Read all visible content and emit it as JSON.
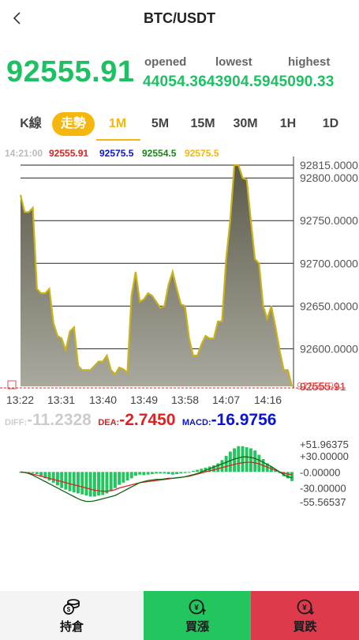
{
  "header": {
    "title": "BTC/USDT"
  },
  "price": {
    "current": "92555.91",
    "labels": {
      "opened": "opened",
      "lowest": "lowest",
      "highest": "highest"
    },
    "opened": "44054.36",
    "lowest": "43904.59",
    "highest": "45090.33"
  },
  "tabs": [
    {
      "label": "K線"
    },
    {
      "label": "走勢"
    },
    {
      "label": "1M"
    },
    {
      "label": "5M"
    },
    {
      "label": "15M"
    },
    {
      "label": "30M"
    },
    {
      "label": "1H"
    },
    {
      "label": "1D"
    }
  ],
  "legend": {
    "time": "14:21:00",
    "v1": "92555.91",
    "v2": "92575.5",
    "v3": "92554.5",
    "v4": "92575.5"
  },
  "colors": {
    "green": "#1ec063",
    "accent": "#f5b70e",
    "red": "#dd2222",
    "blue": "#0a14d8",
    "legend_green": "#118811",
    "area_fill": "#6e6d5e",
    "area_line": "#c9b21c",
    "sell": "#dd3b4c"
  },
  "chart_data": [
    {
      "type": "area",
      "x_ticks": [
        "13:22",
        "13:31",
        "13:40",
        "13:49",
        "13:58",
        "14:07",
        "14:16"
      ],
      "y_ticks": [
        "92815.0000",
        "92800.0000",
        "92750.0000",
        "92700.0000",
        "92650.0000",
        "92600.0000",
        "92555.91"
      ],
      "ylim": [
        92555.91,
        92815.0
      ],
      "grid": true,
      "series": [
        {
          "values": [
            92780,
            92760,
            92760,
            92765,
            92670,
            92665,
            92665,
            92670,
            92630,
            92615,
            92612,
            92598,
            92620,
            92625,
            92580,
            92575,
            92575,
            92575,
            92580,
            92585,
            92585,
            92592,
            92575,
            92570,
            92578,
            92576,
            92572,
            92662,
            92690,
            92655,
            92658,
            92665,
            92662,
            92655,
            92648,
            92650,
            92675,
            92690,
            92670,
            92652,
            92650,
            92612,
            92592,
            92592,
            92605,
            92615,
            92612,
            92612,
            92632,
            92632,
            92705,
            92750,
            92815,
            92815,
            92800,
            92798,
            92750,
            92705,
            92700,
            92650,
            92635,
            92650,
            92625,
            92598,
            92575,
            92575,
            92555.91
          ]
        }
      ]
    },
    {
      "type": "bar",
      "title": "MACD",
      "labels": {
        "diff": "DIFF:",
        "dea": "DEA:",
        "macd": "MACD:"
      },
      "values_text": {
        "diff": "-11.2328",
        "dea": "-2.7450",
        "macd": "-16.9756"
      },
      "y_ticks": [
        "+51.96375",
        "+30.00000",
        "-0.00000",
        "-30.00000",
        "-55.56537"
      ],
      "ylim": [
        -55.56537,
        51.96375
      ],
      "histogram": [
        0,
        0,
        -1,
        -2,
        -4,
        -8,
        -12,
        -16,
        -20,
        -25,
        -30,
        -33,
        -36,
        -38,
        -40,
        -42,
        -44,
        -46,
        -46,
        -44,
        -43,
        -40,
        -36,
        -30,
        -24,
        -20,
        -16,
        -12,
        -7,
        -5,
        -6,
        -5,
        -4,
        -3,
        -3,
        -3,
        -4,
        -5,
        -4,
        -3,
        -2,
        0,
        2,
        4,
        6,
        8,
        10,
        12,
        16,
        22,
        30,
        38,
        44,
        48,
        48,
        46,
        44,
        40,
        32,
        24,
        16,
        10,
        4,
        -2,
        -8,
        -12,
        -17
      ],
      "series": [
        {
          "values": [
            0,
            -1,
            -2,
            -4,
            -6,
            -8,
            -10,
            -12,
            -14,
            -16,
            -18,
            -20,
            -22,
            -24,
            -26,
            -28,
            -30,
            -32,
            -34,
            -35,
            -36,
            -36,
            -35,
            -33,
            -30,
            -28,
            -26,
            -24,
            -22,
            -20,
            -19,
            -18,
            -17,
            -16,
            -15,
            -14,
            -13,
            -12,
            -11,
            -10,
            -9,
            -8,
            -6,
            -4,
            -2,
            0,
            2,
            4,
            6,
            8,
            10,
            12,
            14,
            16,
            17,
            18,
            18,
            17,
            15,
            12,
            9,
            6,
            3,
            0,
            -2,
            -4,
            -5
          ]
        },
        {
          "values": [
            0,
            -1,
            -3,
            -6,
            -10,
            -14,
            -18,
            -22,
            -26,
            -30,
            -34,
            -38,
            -42,
            -46,
            -50,
            -53,
            -55,
            -55,
            -54,
            -52,
            -50,
            -48,
            -46,
            -44,
            -40,
            -36,
            -32,
            -28,
            -24,
            -20,
            -18,
            -16,
            -15,
            -14,
            -14,
            -13,
            -12,
            -12,
            -11,
            -10,
            -9,
            -7,
            -5,
            -3,
            0,
            3,
            6,
            9,
            12,
            15,
            18,
            21,
            24,
            26,
            28,
            28,
            27,
            25,
            22,
            18,
            14,
            10,
            5,
            0,
            -5,
            -9,
            -11
          ]
        }
      ]
    }
  ],
  "bottom": {
    "hold": "持倉",
    "buy_up": "買漲",
    "buy_down": "買跌"
  }
}
